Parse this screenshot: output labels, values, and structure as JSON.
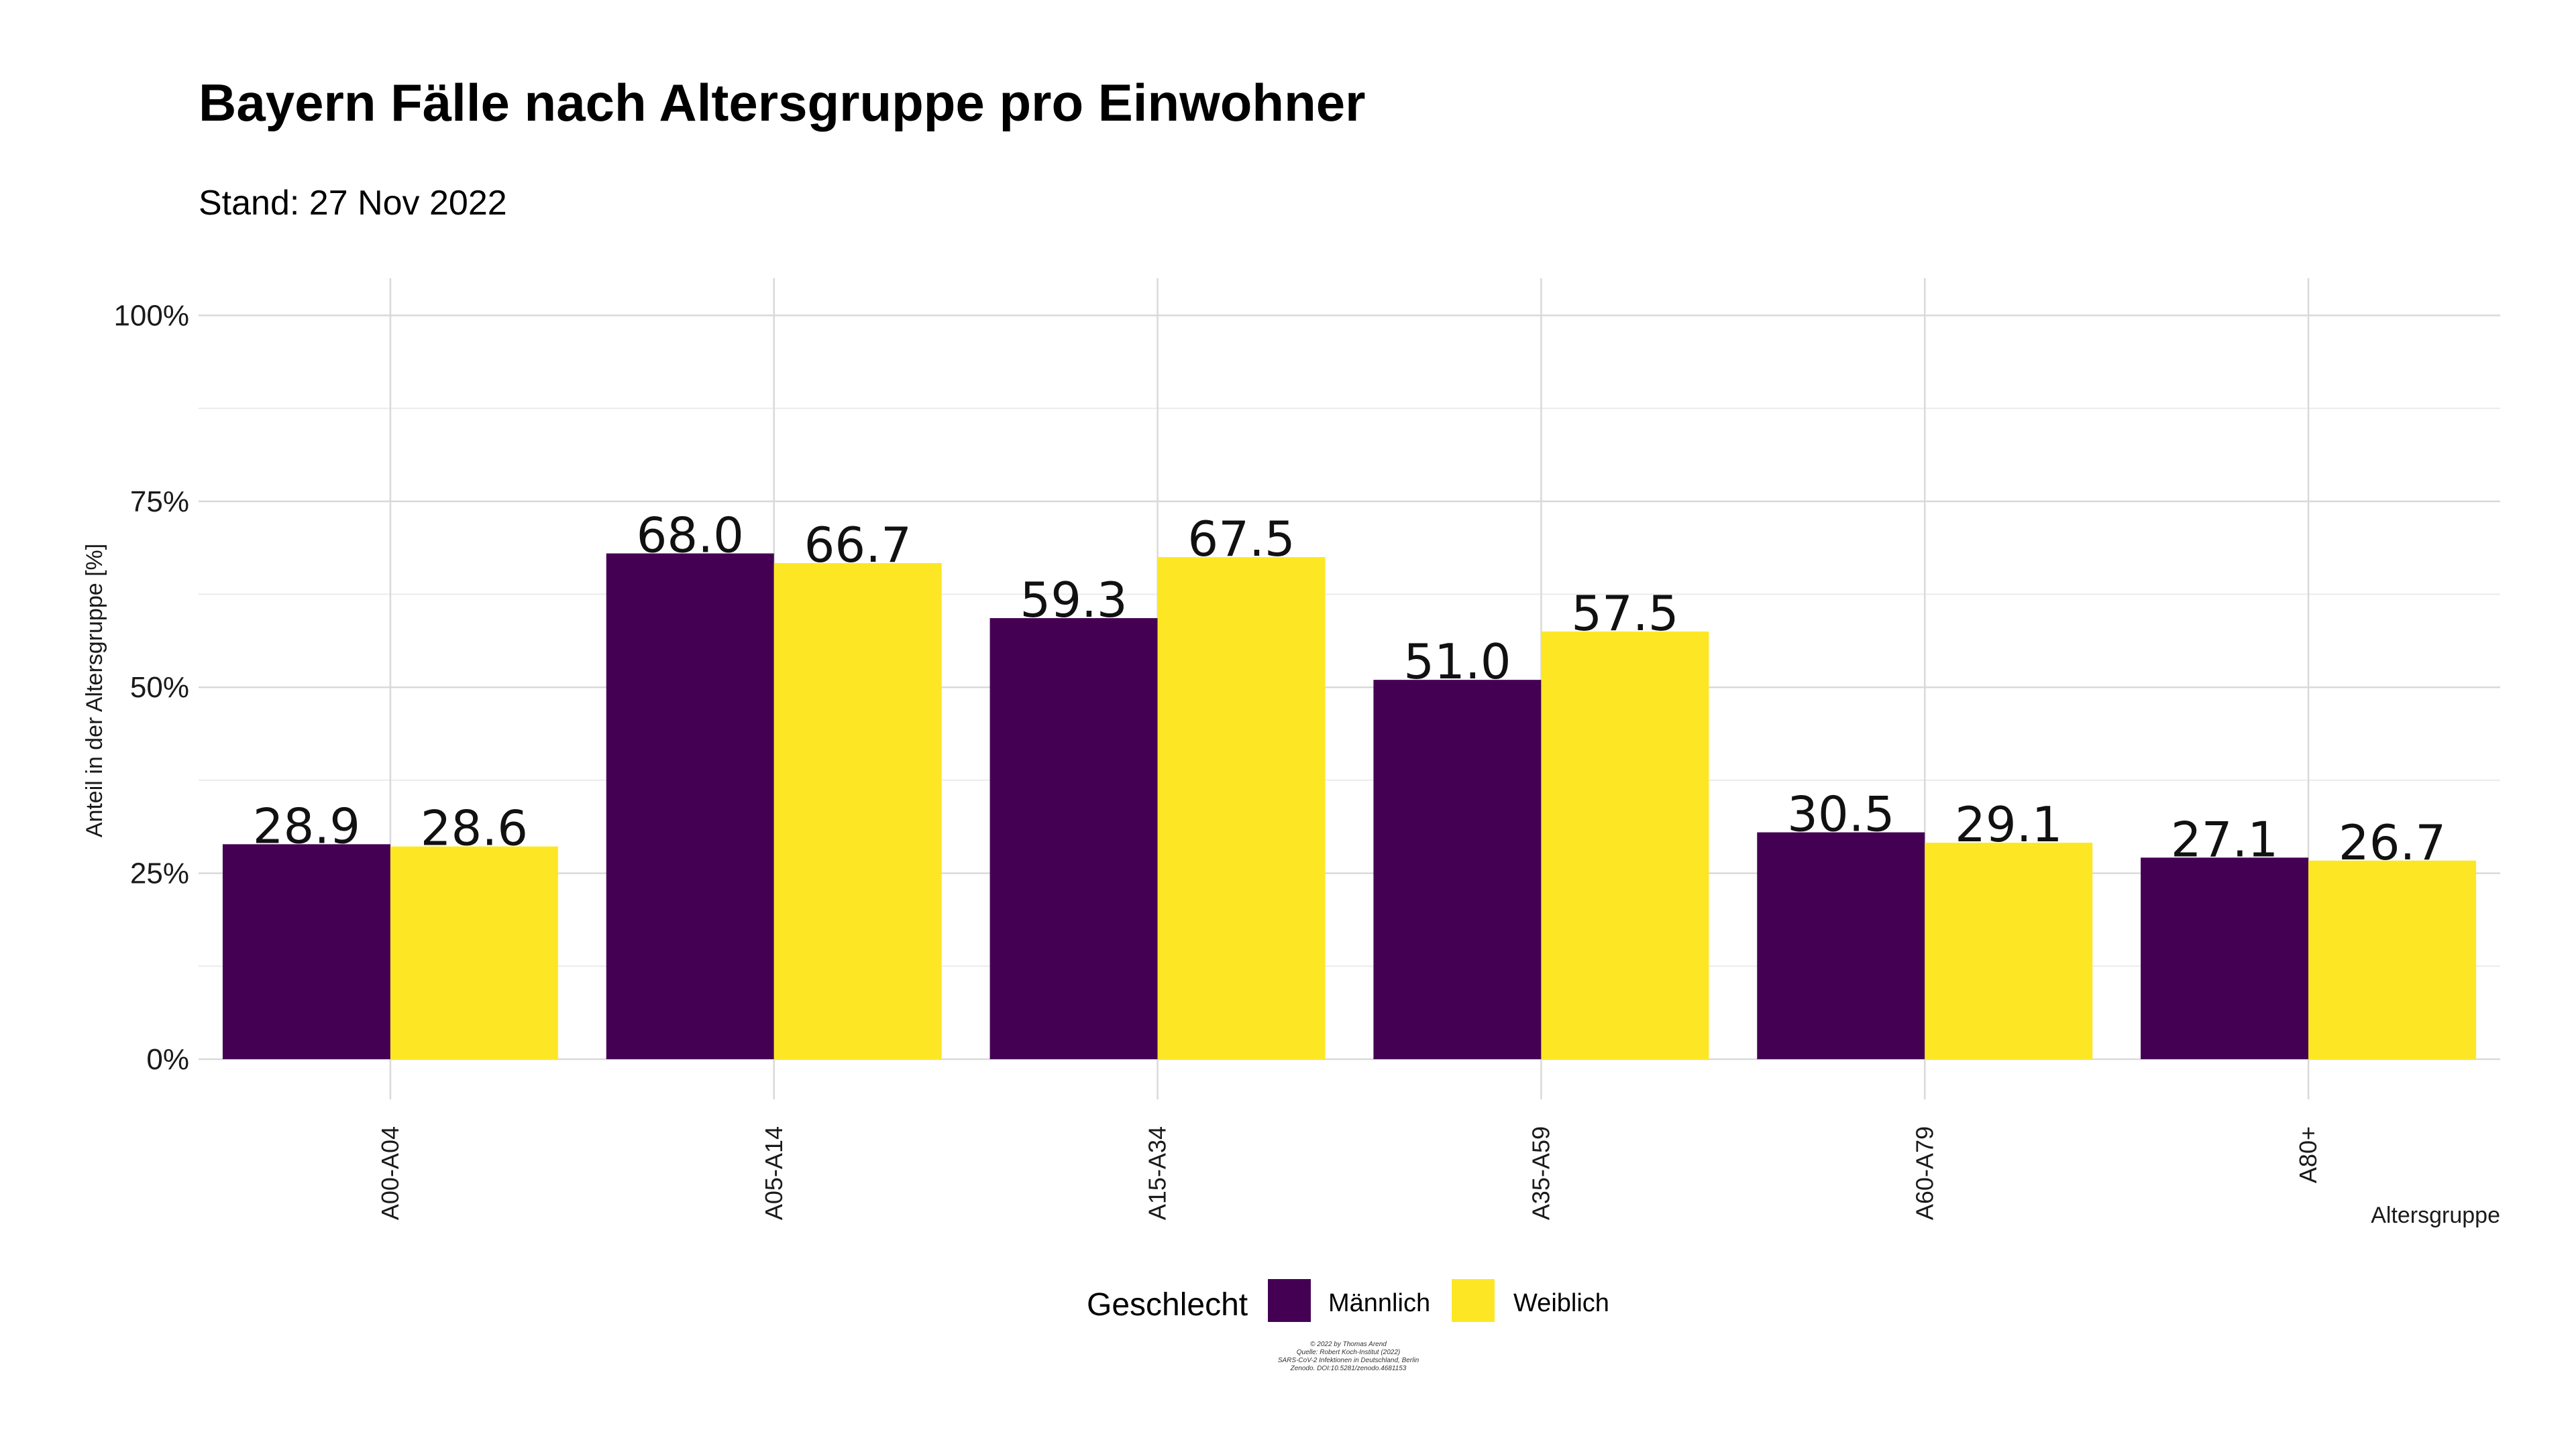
{
  "chart_data": {
    "type": "bar",
    "title": "Bayern Fälle nach Altersgruppe pro Einwohner",
    "subtitle": "Stand: 27 Nov 2022",
    "xlabel": "Altersgruppe",
    "ylabel": "Anteil in der Altersgruppe [%]",
    "ylim": [
      0,
      1.05
    ],
    "yticks": [
      0,
      0.25,
      0.5,
      0.75,
      1.0
    ],
    "ytick_labels": [
      "0%",
      "25%",
      "50%",
      "75%",
      "100%"
    ],
    "grid": true,
    "categories": [
      "A00-A04",
      "A05-A14",
      "A15-A34",
      "A35-A59",
      "A60-A79",
      "A80+"
    ],
    "series": [
      {
        "name": "Männlich",
        "color": "#440154",
        "values": [
          0.289,
          0.68,
          0.593,
          0.51,
          0.305,
          0.271
        ],
        "labels": [
          "28.9",
          "68.0",
          "59.3",
          "51.0",
          "30.5",
          "27.1"
        ]
      },
      {
        "name": "Weiblich",
        "color": "#FDE725",
        "values": [
          0.286,
          0.667,
          0.675,
          0.575,
          0.291,
          0.267
        ],
        "labels": [
          "28.6",
          "66.7",
          "67.5",
          "57.5",
          "29.1",
          "26.7"
        ]
      }
    ],
    "legend": {
      "title": "Geschlecht",
      "position": "bottom"
    },
    "caption": [
      "© 2022 by Thomas Arend",
      "Quelle: Robert Koch-Institut (2022)",
      "SARS-CoV-2 Infektionen in Deutschland, Berlin",
      "Zenodo. DOI:10.5281/zenodo.4681153"
    ]
  }
}
